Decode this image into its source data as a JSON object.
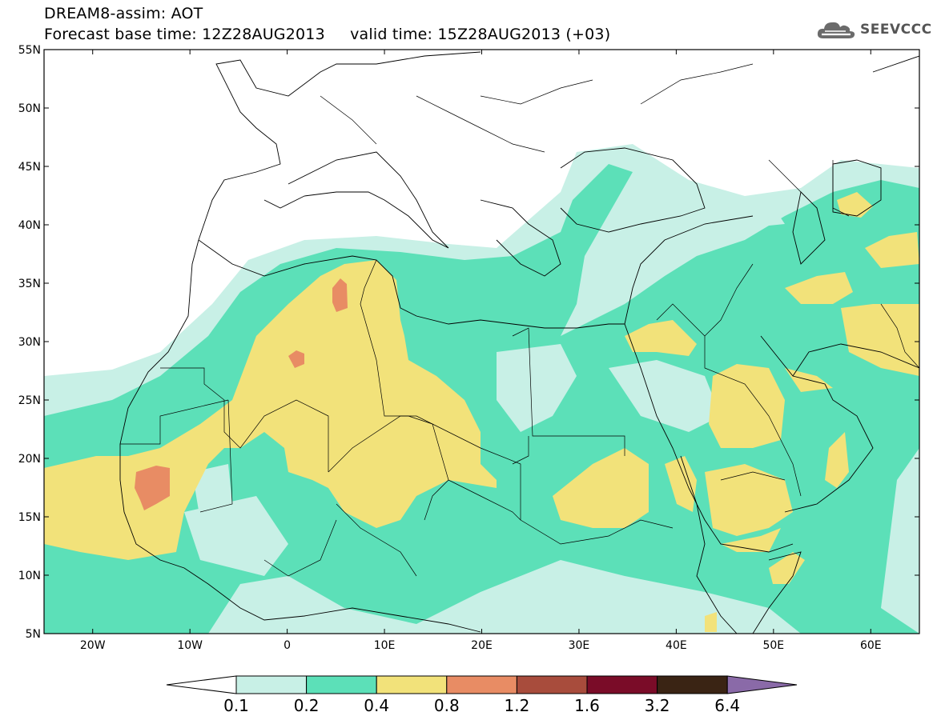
{
  "header": {
    "title_line1": "DREAM8-assim: AOT",
    "title_line2": "Forecast base time: 12Z28AUG2013     valid time: 15Z28AUG2013 (+03)",
    "logo_text": "SEEVCCC",
    "logo_icon": "cloud-icon"
  },
  "map": {
    "lat_ticks": [
      {
        "label": "55N",
        "value": 55
      },
      {
        "label": "50N",
        "value": 50
      },
      {
        "label": "45N",
        "value": 45
      },
      {
        "label": "40N",
        "value": 40
      },
      {
        "label": "35N",
        "value": 35
      },
      {
        "label": "30N",
        "value": 30
      },
      {
        "label": "25N",
        "value": 25
      },
      {
        "label": "20N",
        "value": 20
      },
      {
        "label": "15N",
        "value": 15
      },
      {
        "label": "10N",
        "value": 10
      },
      {
        "label": "5N",
        "value": 5
      }
    ],
    "lon_ticks": [
      {
        "label": "20W",
        "value": -20
      },
      {
        "label": "10W",
        "value": -10
      },
      {
        "label": "0",
        "value": 0
      },
      {
        "label": "10E",
        "value": 10
      },
      {
        "label": "20E",
        "value": 20
      },
      {
        "label": "30E",
        "value": 30
      },
      {
        "label": "40E",
        "value": 40
      },
      {
        "label": "50E",
        "value": 50
      },
      {
        "label": "60E",
        "value": 60
      }
    ],
    "lon_range": [
      -25,
      65
    ],
    "lat_range": [
      5,
      55
    ]
  },
  "legend": {
    "labels": [
      "0.1",
      "0.2",
      "0.4",
      "0.8",
      "1.2",
      "1.6",
      "3.2",
      "6.4"
    ],
    "colors": [
      "#ffffff",
      "#c8f0e6",
      "#5ce0b8",
      "#f2e27a",
      "#e88c64",
      "#a84c3c",
      "#7a0c28",
      "#3a2414",
      "#8a6aa8"
    ]
  }
}
